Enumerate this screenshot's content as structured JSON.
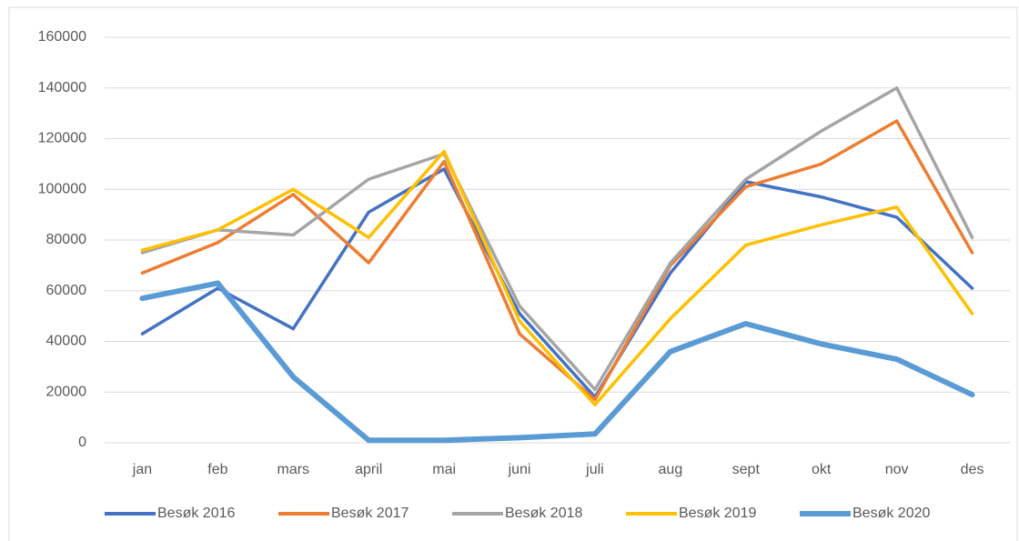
{
  "chart_data": {
    "type": "line",
    "categories": [
      "jan",
      "feb",
      "mars",
      "april",
      "mai",
      "juni",
      "juli",
      "aug",
      "sept",
      "okt",
      "nov",
      "des"
    ],
    "series": [
      {
        "name": "Besøk 2016",
        "color": "#4472c4",
        "values": [
          43000,
          61000,
          45000,
          91000,
          108000,
          51000,
          18000,
          67000,
          103000,
          97000,
          89000,
          61000
        ]
      },
      {
        "name": "Besøk 2017",
        "color": "#ed7d31",
        "values": [
          67000,
          79000,
          98000,
          71000,
          111000,
          43000,
          17000,
          70000,
          101000,
          110000,
          127000,
          75000
        ]
      },
      {
        "name": "Besøk 2018",
        "color": "#a5a5a5",
        "values": [
          75000,
          84000,
          82000,
          104000,
          114000,
          54000,
          21000,
          71000,
          104000,
          123000,
          140000,
          81000
        ]
      },
      {
        "name": "Besøk 2019",
        "color": "#ffc000",
        "values": [
          76000,
          84000,
          100000,
          81000,
          115000,
          48000,
          15000,
          49000,
          78000,
          86000,
          93000,
          51000
        ]
      },
      {
        "name": "Besøk 2020",
        "color": "#5b9bd5",
        "values": [
          57000,
          63000,
          26000,
          1000,
          1000,
          2000,
          3500,
          36000,
          47000,
          39000,
          33000,
          19000
        ]
      }
    ],
    "ylim": [
      0,
      160000
    ],
    "yticks": [
      0,
      20000,
      40000,
      60000,
      80000,
      100000,
      120000,
      140000,
      160000
    ],
    "grid": true,
    "legend": "bottom"
  }
}
